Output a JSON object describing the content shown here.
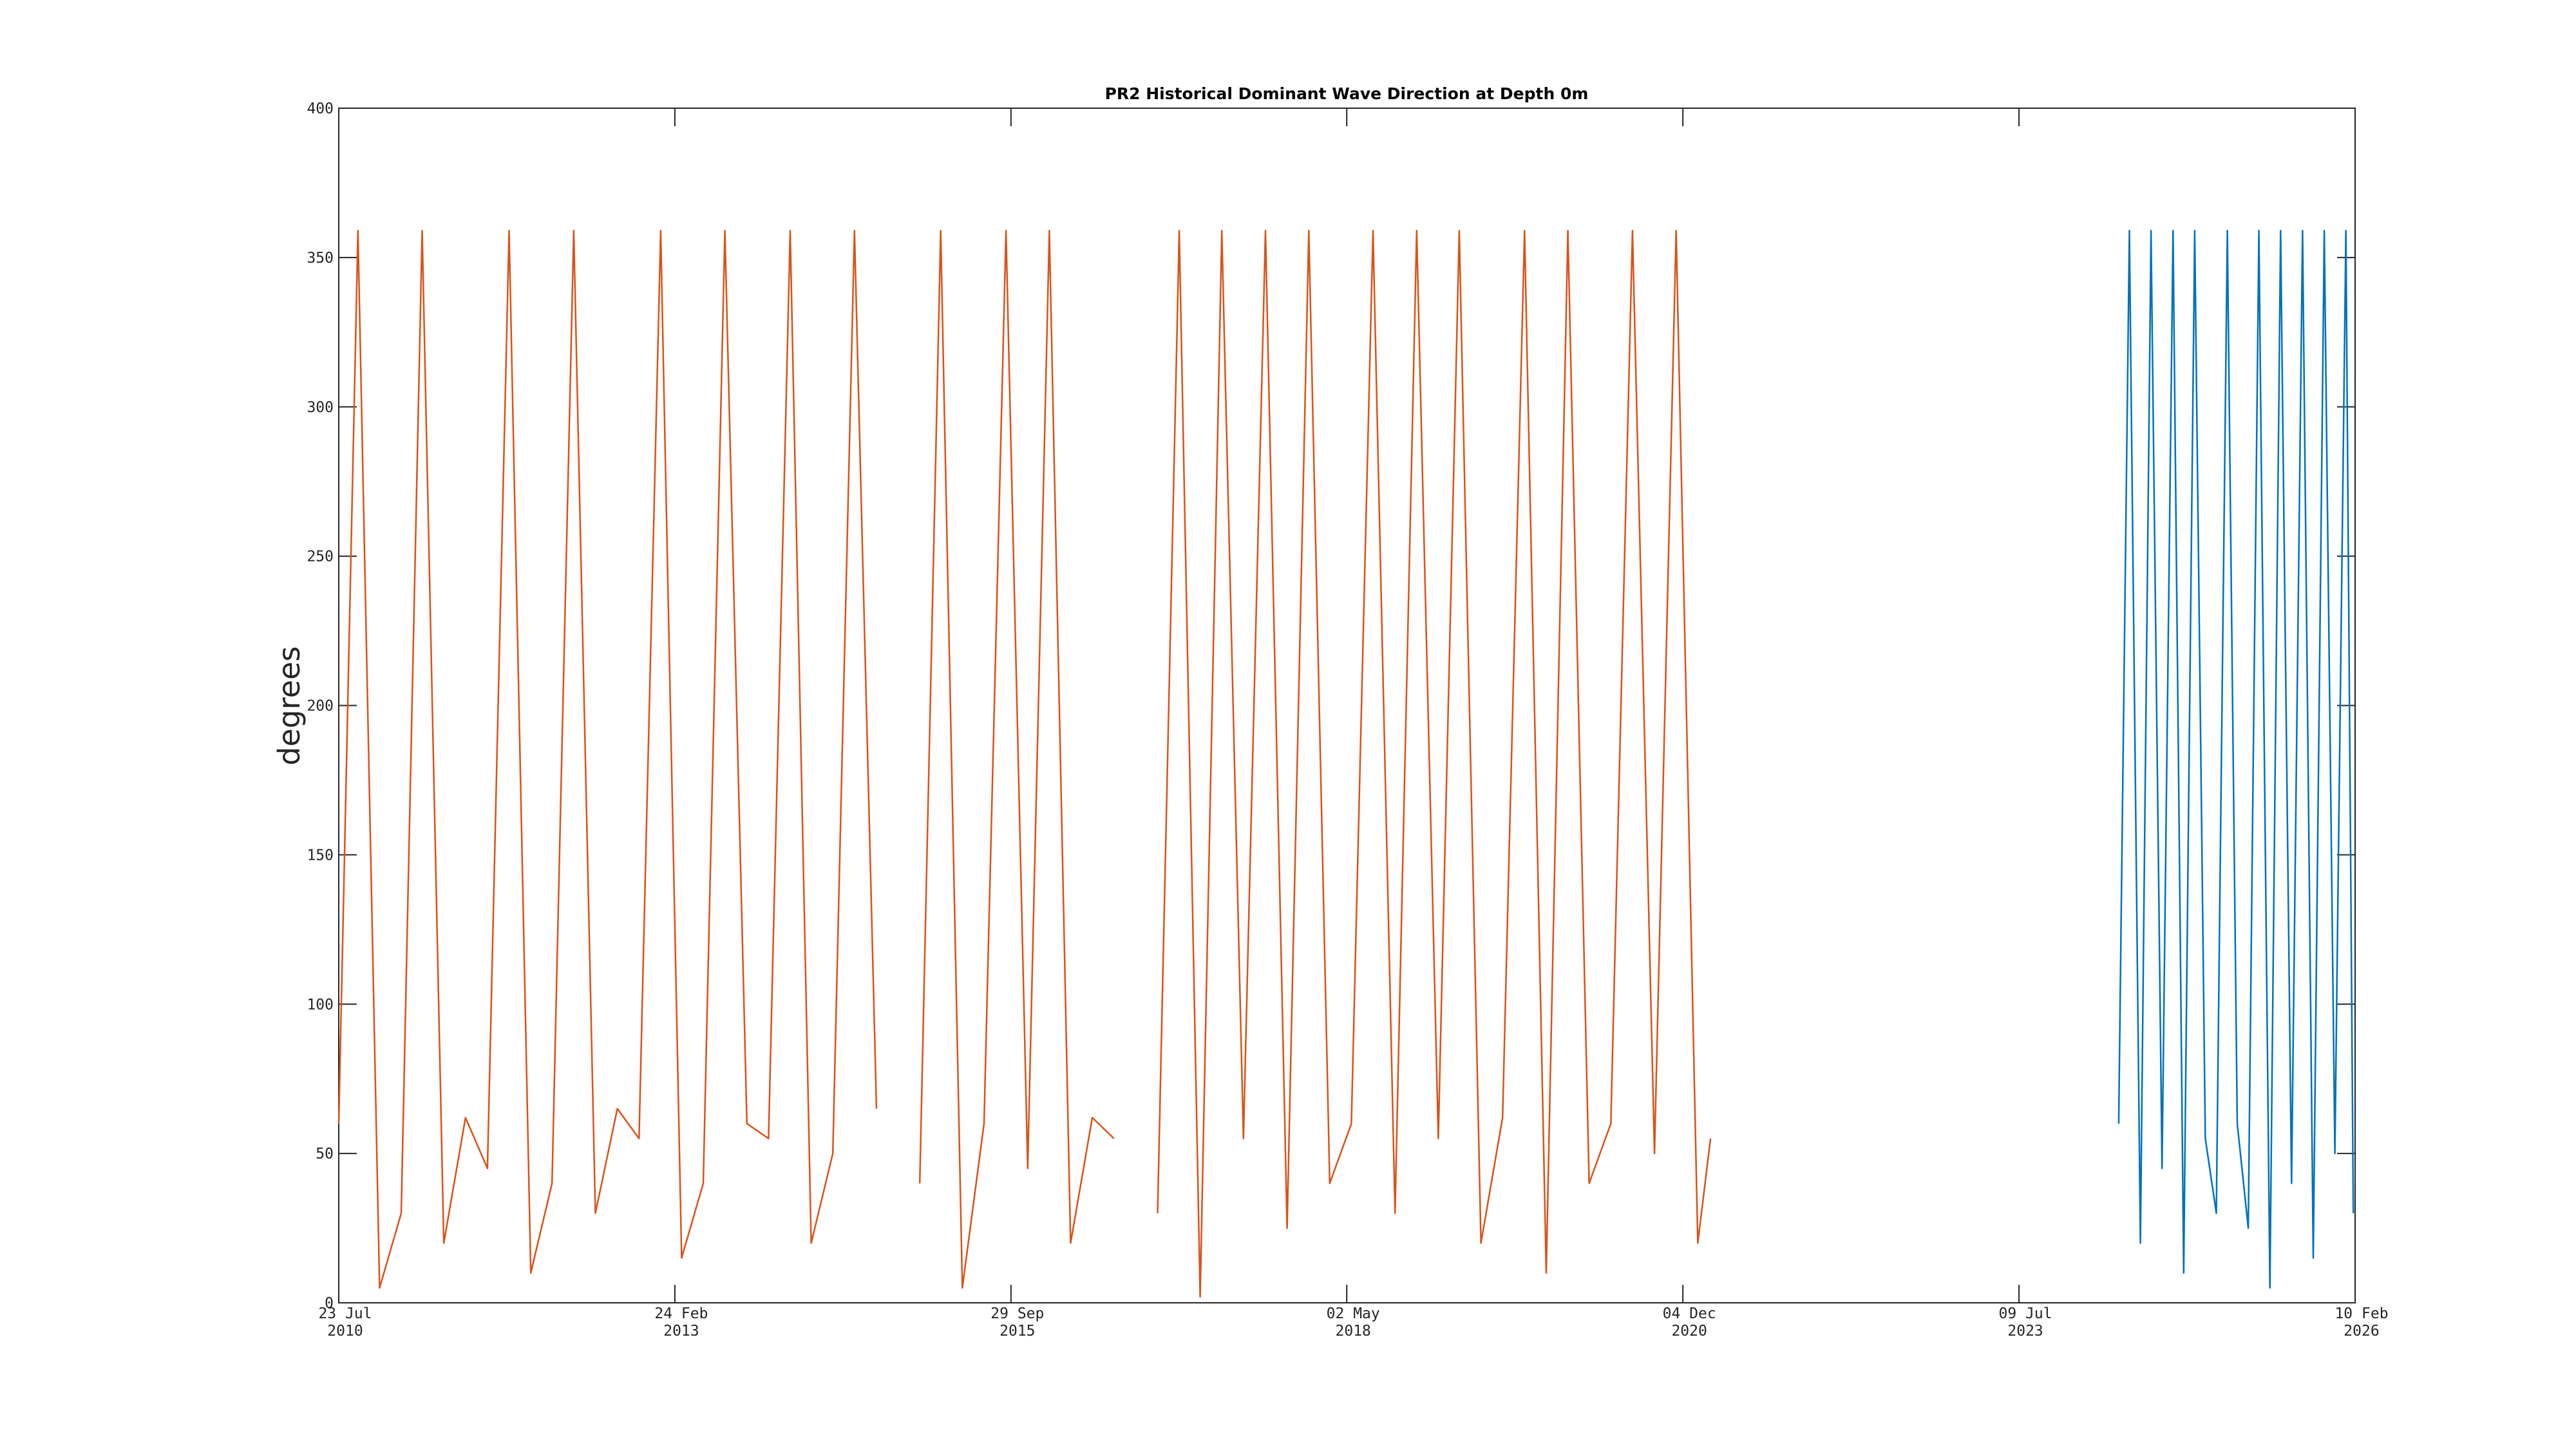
{
  "chart_data": {
    "type": "line",
    "title": "PR2 Historical Dominant Wave Direction at Depth 0m",
    "y_label": "degrees",
    "xlim": [
      "2010-07-23",
      "2026-02-10"
    ],
    "xticks": [
      {
        "value": "2010-07-23",
        "label": [
          "23 Jul",
          "2010"
        ]
      },
      {
        "value": "2013-02-24",
        "label": [
          "24 Feb",
          "2013"
        ]
      },
      {
        "value": "2015-09-29",
        "label": [
          "29 Sep",
          "2015"
        ]
      },
      {
        "value": "2018-05-02",
        "label": [
          "02 May",
          "2018"
        ]
      },
      {
        "value": "2020-12-04",
        "label": [
          "04 Dec",
          "2020"
        ]
      },
      {
        "value": "2023-07-09",
        "label": [
          "09 Jul",
          "2023"
        ]
      },
      {
        "value": "2026-02-10",
        "label": [
          "10 Feb",
          "2026"
        ]
      }
    ],
    "ylim": [
      0,
      400
    ],
    "yticks": [
      0,
      50,
      100,
      150,
      200,
      250,
      300,
      350,
      400
    ],
    "grid": false,
    "series": [
      {
        "color": "#d95319",
        "x": [
          "2010-07-23",
          "2010-09-15",
          "2010-11-15",
          "2011-01-15",
          "2011-03-15",
          "2011-05-15",
          "2011-07-15",
          "2011-09-15",
          "2011-11-15",
          "2012-01-15",
          "2012-03-15",
          "2012-05-15",
          "2012-07-15",
          "2012-09-15",
          "2012-11-15",
          "2013-01-15",
          "2013-03-15",
          "2013-05-15",
          "2013-07-15",
          "2013-09-15",
          "2013-11-15",
          "2014-01-15",
          "2014-03-15",
          "2014-05-15",
          "2014-07-15",
          "2014-09-15",
          "2014-11-15",
          "2015-01-15",
          "2015-03-15",
          "2015-05-15",
          "2015-07-15",
          "2015-09-15",
          "2015-11-15",
          "2016-01-15",
          "2016-03-15",
          "2016-05-15",
          "2016-07-15",
          "2016-09-15",
          "2016-11-15",
          "2017-01-15",
          "2017-03-15",
          "2017-05-15",
          "2017-07-15",
          "2017-09-15",
          "2017-11-15",
          "2018-01-15",
          "2018-03-15",
          "2018-05-15",
          "2018-07-15",
          "2018-09-15",
          "2018-11-15",
          "2019-01-15",
          "2019-03-15",
          "2019-05-15",
          "2019-07-15",
          "2019-09-15",
          "2019-11-15",
          "2020-01-15",
          "2020-03-15",
          "2020-05-15",
          "2020-07-15",
          "2020-09-15",
          "2020-11-15",
          "2021-01-15",
          "2021-02-20"
        ],
        "values": [
          60,
          359,
          5,
          30,
          359,
          20,
          62,
          45,
          359,
          10,
          40,
          359,
          30,
          65,
          55,
          359,
          15,
          40,
          359,
          60,
          55,
          359,
          20,
          50,
          359,
          65,
          null,
          40,
          359,
          5,
          60,
          359,
          45,
          359,
          20,
          62,
          55,
          null,
          30,
          359,
          2,
          359,
          55,
          359,
          25,
          359,
          40,
          60,
          359,
          30,
          359,
          55,
          359,
          20,
          62,
          359,
          10,
          359,
          40,
          60,
          359,
          50,
          359,
          20,
          55
        ]
      },
      {
        "color": "#0072bd",
        "x": [
          "2024-04-15",
          "2024-05-15",
          "2024-06-15",
          "2024-07-15",
          "2024-08-15",
          "2024-09-15",
          "2024-10-15",
          "2024-11-15",
          "2024-12-15",
          "2025-01-15",
          "2025-02-15",
          "2025-03-15",
          "2025-04-15",
          "2025-05-15",
          "2025-06-15",
          "2025-07-15",
          "2025-08-15",
          "2025-09-15",
          "2025-10-15",
          "2025-11-15",
          "2025-12-15",
          "2026-01-15",
          "2026-02-05"
        ],
        "values": [
          60,
          359,
          20,
          359,
          45,
          359,
          10,
          359,
          55,
          30,
          359,
          60,
          25,
          359,
          5,
          359,
          40,
          359,
          15,
          359,
          50,
          359,
          30
        ]
      }
    ]
  }
}
